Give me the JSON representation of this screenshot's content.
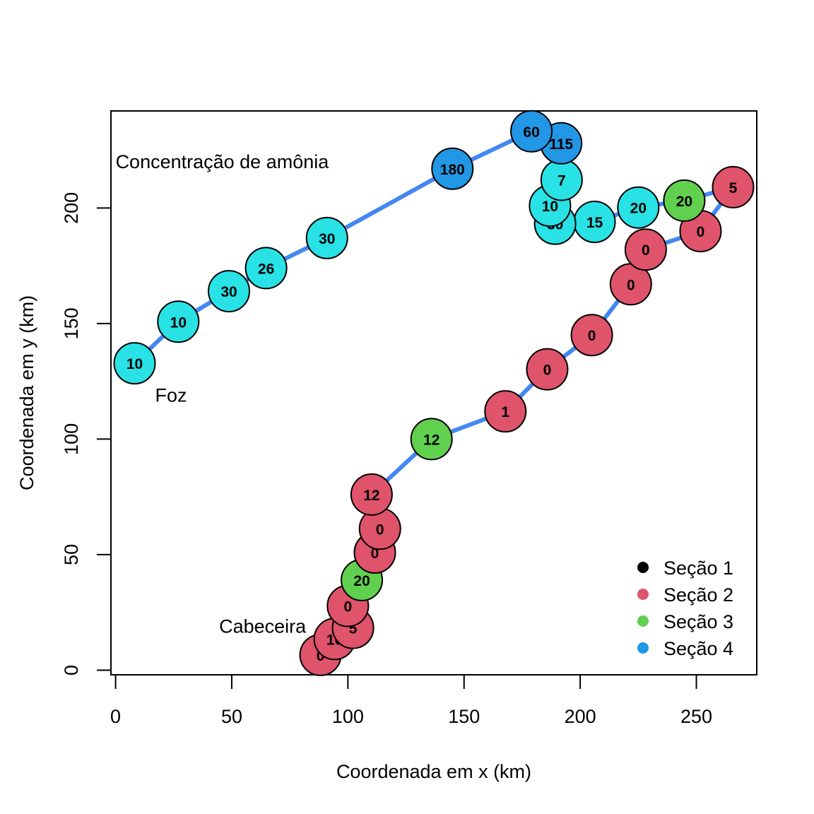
{
  "chart_data": {
    "type": "scatter",
    "title": "",
    "xlabel": "Coordenada em x (km)",
    "ylabel": "Coordenada em y (km)",
    "xlim": [
      -2,
      276
    ],
    "ylim": [
      -2,
      242
    ],
    "x_ticks": [
      0,
      50,
      100,
      150,
      200,
      250
    ],
    "y_ticks": [
      0,
      50,
      100,
      150,
      200
    ],
    "grid": false,
    "line_color": "#4387F2",
    "annotations": [
      {
        "text": "Concentração de amônia",
        "x": 0,
        "y": 220,
        "anchor": "start"
      },
      {
        "text": "Foz",
        "x": 17,
        "y": 119,
        "anchor": "start"
      },
      {
        "text": "Cabeceira",
        "x": 82,
        "y": 19,
        "anchor": "end"
      }
    ],
    "legend": {
      "position": "bottom-right",
      "entries": [
        {
          "label": "Seção 1",
          "color": "#000000"
        },
        {
          "label": "Seção 2",
          "color": "#DF536B"
        },
        {
          "label": "Seção 3",
          "color": "#61D04F"
        },
        {
          "label": "Seção 4",
          "color": "#2297E6"
        }
      ]
    },
    "section_colors": {
      "1": "#000000",
      "2": "#DF536B",
      "3": "#61D04F",
      "4": "#2297E6",
      "5": "#28E2E5"
    },
    "points": [
      {
        "x": 88.2,
        "y": 6.6,
        "label": "0",
        "section": 2
      },
      {
        "x": 94.3,
        "y": 13.5,
        "label": "10",
        "section": 2
      },
      {
        "x": 102.2,
        "y": 18.3,
        "label": "5",
        "section": 2
      },
      {
        "x": 100.0,
        "y": 27.8,
        "label": "0",
        "section": 2
      },
      {
        "x": 106.0,
        "y": 39.0,
        "label": "20",
        "section": 3
      },
      {
        "x": 111.6,
        "y": 50.9,
        "label": "0",
        "section": 2
      },
      {
        "x": 113.8,
        "y": 61.2,
        "label": "0",
        "section": 2
      },
      {
        "x": 110.2,
        "y": 76.0,
        "label": "12",
        "section": 2
      },
      {
        "x": 136.0,
        "y": 100.0,
        "label": "12",
        "section": 3
      },
      {
        "x": 167.8,
        "y": 112.0,
        "label": "1",
        "section": 2
      },
      {
        "x": 185.8,
        "y": 130.2,
        "label": "0",
        "section": 2
      },
      {
        "x": 205.0,
        "y": 145.0,
        "label": "0",
        "section": 2
      },
      {
        "x": 221.8,
        "y": 167.0,
        "label": "0",
        "section": 2
      },
      {
        "x": 228.2,
        "y": 182.0,
        "label": "0",
        "section": 2
      },
      {
        "x": 251.8,
        "y": 190.0,
        "label": "0",
        "section": 2
      },
      {
        "x": 265.8,
        "y": 209.0,
        "label": "5",
        "section": 2
      },
      {
        "x": 244.8,
        "y": 203.2,
        "label": "20",
        "section": 3
      },
      {
        "x": 225.0,
        "y": 200.2,
        "label": "20",
        "section": 5
      },
      {
        "x": 206.2,
        "y": 194.0,
        "label": "15",
        "section": 5
      },
      {
        "x": 189.2,
        "y": 193.2,
        "label": "30",
        "section": 5
      },
      {
        "x": 187.0,
        "y": 201.0,
        "label": "10",
        "section": 5
      },
      {
        "x": 192.0,
        "y": 212.2,
        "label": "7",
        "section": 5
      },
      {
        "x": 191.8,
        "y": 228.0,
        "label": "115",
        "section": 4
      },
      {
        "x": 179.0,
        "y": 233.2,
        "label": "60",
        "section": 4
      },
      {
        "x": 145.0,
        "y": 217.0,
        "label": "180",
        "section": 4
      },
      {
        "x": 91.0,
        "y": 187.0,
        "label": "30",
        "section": 5
      },
      {
        "x": 64.8,
        "y": 174.0,
        "label": "26",
        "section": 5
      },
      {
        "x": 48.8,
        "y": 164.0,
        "label": "30",
        "section": 5
      },
      {
        "x": 27.0,
        "y": 150.8,
        "label": "10",
        "section": 5
      },
      {
        "x": 8.2,
        "y": 132.8,
        "label": "10",
        "section": 5
      }
    ]
  }
}
